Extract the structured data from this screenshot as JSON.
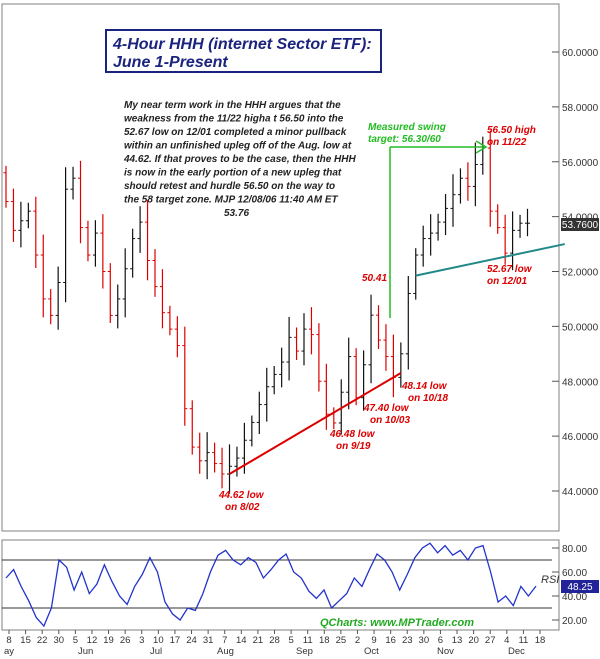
{
  "chart_data": [
    {
      "type": "bar",
      "subtype": "ohlc-price",
      "title_line1": "4-Hour HHH (internet Sector ETF):",
      "title_line2": "June 1-Present",
      "commentary": [
        "My near term work in the HHH argues that the",
        "weakness from the 11/22 higha t 56.50 into the",
        "52.67 low on 12/01 completed a minor pullback",
        "within an unfinished upleg off of the Aug. low at",
        "44.62. If that proves to be the case, then the HHH",
        "is now in the early portion of a new upleg that",
        "should retest and hurdle 56.50 on the way to",
        "the 58 target zone.  MJP  12/08/06  11:40 AM ET",
        "53.76"
      ],
      "y_ticks": [
        "60.0000",
        "58.0000",
        "56.0000",
        "54.0000",
        "52.0000",
        "50.0000",
        "48.0000",
        "46.0000",
        "44.0000"
      ],
      "y_tick_values": [
        60,
        58,
        56,
        54,
        52,
        50,
        48,
        46,
        44
      ],
      "ylim": [
        42.4,
        61.6
      ],
      "last_price_label": "53.7600",
      "last_price": 53.76,
      "grid": false,
      "series_points": [
        [
          0,
          55.6
        ],
        [
          2,
          53.5
        ],
        [
          4,
          54.2
        ],
        [
          6,
          51.0
        ],
        [
          7,
          50.4
        ],
        [
          8,
          51.6
        ],
        [
          9,
          55.0
        ],
        [
          10,
          55.4
        ],
        [
          11,
          53.6
        ],
        [
          12,
          52.6
        ],
        [
          13,
          53.4
        ],
        [
          14,
          52.0
        ],
        [
          15,
          50.4
        ],
        [
          16,
          51.0
        ],
        [
          17,
          52.1
        ],
        [
          18,
          53.2
        ],
        [
          19,
          53.8
        ],
        [
          20,
          52.4
        ],
        [
          22,
          50.5
        ],
        [
          24,
          49.3
        ],
        [
          25,
          47.0
        ],
        [
          26,
          45.6
        ],
        [
          27,
          45.1
        ],
        [
          28,
          45.4
        ],
        [
          29,
          45.0
        ],
        [
          30,
          44.62
        ],
        [
          31,
          44.9
        ],
        [
          32,
          45.2
        ],
        [
          34,
          46.5
        ],
        [
          36,
          47.8
        ],
        [
          38,
          48.7
        ],
        [
          39,
          49.6
        ],
        [
          40,
          49.1
        ],
        [
          41,
          49.9
        ],
        [
          42,
          49.7
        ],
        [
          43,
          48.0
        ],
        [
          44,
          46.8
        ],
        [
          45,
          46.48
        ],
        [
          46,
          47.6
        ],
        [
          47,
          48.9
        ],
        [
          48,
          47.4
        ],
        [
          49,
          48.6
        ],
        [
          50,
          50.41
        ],
        [
          51,
          49.5
        ],
        [
          52,
          48.9
        ],
        [
          53,
          48.14
        ],
        [
          54,
          49.0
        ],
        [
          55,
          51.2
        ],
        [
          56,
          52.6
        ],
        [
          57,
          53.2
        ],
        [
          58,
          53.4
        ],
        [
          59,
          53.8
        ],
        [
          60,
          54.3
        ],
        [
          61,
          54.8
        ],
        [
          62,
          55.4
        ],
        [
          63,
          55.1
        ],
        [
          64,
          55.9
        ],
        [
          65,
          56.5
        ],
        [
          66,
          54.2
        ],
        [
          67,
          53.6
        ],
        [
          68,
          52.67
        ],
        [
          69,
          53.5
        ],
        [
          70,
          53.76
        ]
      ],
      "x_dates": [
        "8",
        "15",
        "22",
        "30",
        "5",
        "12",
        "19",
        "26",
        "3",
        "10",
        "17",
        "24",
        "31",
        "7",
        "14",
        "21",
        "28",
        "5",
        "11",
        "18",
        "25",
        "2",
        "9",
        "16",
        "23",
        "30",
        "6",
        "13",
        "20",
        "27",
        "4",
        "11",
        "18"
      ],
      "x_months": [
        "ay",
        "Jun",
        "Jul",
        "Aug",
        "Sep",
        "Oct",
        "Nov",
        "Dec"
      ],
      "annotations": [
        {
          "lines": [
            "Measured swing",
            "target: 56.30/60"
          ],
          "color": "#22bb22"
        },
        {
          "lines": [
            "56.50 high",
            "on 11/22"
          ],
          "color": "#dd0000"
        },
        {
          "lines": [
            "52.67 low",
            "on 12/01"
          ],
          "color": "#dd0000"
        },
        {
          "lines": [
            "50.41"
          ],
          "color": "#dd0000"
        },
        {
          "lines": [
            "48.14 low",
            "on 10/18"
          ],
          "color": "#dd0000"
        },
        {
          "lines": [
            "47.40 low",
            "on 10/03"
          ],
          "color": "#dd0000"
        },
        {
          "lines": [
            "46.48 low",
            "on 9/19"
          ],
          "color": "#dd0000"
        },
        {
          "lines": [
            "44.62 low",
            "on 8/02"
          ],
          "color": "#dd0000"
        }
      ],
      "trendlines": [
        {
          "color": "#dd0000",
          "from": [
            30,
            44.62
          ],
          "to": [
            53,
            48.3
          ]
        },
        {
          "color": "#228888",
          "from": [
            55,
            51.85
          ],
          "to": [
            75,
            53.0
          ]
        }
      ]
    },
    {
      "type": "line",
      "label": "RSI",
      "y_ticks": [
        "80.00",
        "60.00",
        "40.00",
        "20.00"
      ],
      "y_tick_values": [
        80,
        60,
        40,
        20
      ],
      "ylim": [
        10,
        88
      ],
      "reference_lines": [
        70,
        30
      ],
      "last_value_label": "48.25",
      "last_value": 48.25,
      "values": [
        55,
        62,
        48,
        36,
        22,
        15,
        30,
        70,
        64,
        45,
        60,
        42,
        50,
        66,
        52,
        40,
        33,
        48,
        58,
        72,
        60,
        35,
        25,
        20,
        30,
        28,
        42,
        60,
        74,
        78,
        70,
        66,
        72,
        68,
        55,
        62,
        70,
        75,
        60,
        55,
        44,
        38,
        45,
        30,
        36,
        42,
        55,
        48,
        62,
        75,
        70,
        60,
        45,
        58,
        72,
        80,
        84,
        76,
        82,
        74,
        78,
        70,
        80,
        82,
        60,
        35,
        40,
        32,
        48,
        40,
        48.25
      ]
    }
  ],
  "watermark": "QCharts: www.MPTrader.com",
  "colors": {
    "bar_up": "#111111",
    "bar_down": "#dd0000",
    "title_text": "#1a237e",
    "rsi_line": "#2233cc",
    "price_badge": "#333333",
    "rsi_badge": "#222299"
  }
}
